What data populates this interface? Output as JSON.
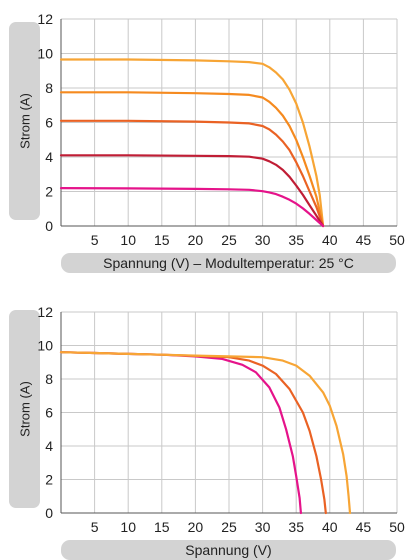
{
  "chart_data": [
    {
      "type": "line",
      "title": "",
      "xlabel": "Spannung (V) – Modultemperatur: 25 °C",
      "ylabel": "Strom (A)",
      "xlim": [
        0,
        50
      ],
      "ylim": [
        0,
        12
      ],
      "x_ticks": [
        5,
        10,
        15,
        20,
        25,
        30,
        35,
        40,
        45,
        50
      ],
      "y_ticks": [
        0,
        2,
        4,
        6,
        8,
        10,
        12
      ],
      "grid": true,
      "series": [
        {
          "color": "#f7a535",
          "points": [
            [
              0,
              9.65
            ],
            [
              10,
              9.65
            ],
            [
              20,
              9.6
            ],
            [
              25,
              9.55
            ],
            [
              28,
              9.5
            ],
            [
              30,
              9.4
            ],
            [
              31,
              9.2
            ],
            [
              32,
              8.9
            ],
            [
              33,
              8.5
            ],
            [
              34,
              7.9
            ],
            [
              35,
              7.1
            ],
            [
              36,
              6.0
            ],
            [
              37,
              4.6
            ],
            [
              38,
              2.9
            ],
            [
              38.5,
              1.8
            ],
            [
              39,
              0
            ]
          ]
        },
        {
          "color": "#f58a1f",
          "points": [
            [
              0,
              7.75
            ],
            [
              10,
              7.75
            ],
            [
              20,
              7.7
            ],
            [
              25,
              7.65
            ],
            [
              28,
              7.6
            ],
            [
              30,
              7.45
            ],
            [
              31,
              7.2
            ],
            [
              32,
              6.85
            ],
            [
              33,
              6.4
            ],
            [
              34,
              5.8
            ],
            [
              35,
              5.0
            ],
            [
              36,
              4.0
            ],
            [
              37,
              2.9
            ],
            [
              38,
              1.7
            ],
            [
              39,
              0
            ]
          ]
        },
        {
          "color": "#ea6224",
          "points": [
            [
              0,
              6.1
            ],
            [
              10,
              6.1
            ],
            [
              20,
              6.05
            ],
            [
              25,
              6.0
            ],
            [
              28,
              5.95
            ],
            [
              30,
              5.8
            ],
            [
              31,
              5.6
            ],
            [
              32,
              5.3
            ],
            [
              33,
              4.9
            ],
            [
              34,
              4.4
            ],
            [
              35,
              3.7
            ],
            [
              36,
              2.9
            ],
            [
              37,
              2.0
            ],
            [
              38,
              1.1
            ],
            [
              39,
              0
            ]
          ]
        },
        {
          "color": "#c01d35",
          "points": [
            [
              0,
              4.1
            ],
            [
              10,
              4.1
            ],
            [
              20,
              4.07
            ],
            [
              25,
              4.05
            ],
            [
              28,
              4.02
            ],
            [
              30,
              3.9
            ],
            [
              31,
              3.75
            ],
            [
              32,
              3.55
            ],
            [
              33,
              3.25
            ],
            [
              34,
              2.85
            ],
            [
              35,
              2.35
            ],
            [
              36,
              1.8
            ],
            [
              37,
              1.2
            ],
            [
              38,
              0.6
            ],
            [
              39,
              0
            ]
          ]
        },
        {
          "color": "#e5138a",
          "points": [
            [
              0,
              2.2
            ],
            [
              10,
              2.18
            ],
            [
              20,
              2.15
            ],
            [
              25,
              2.13
            ],
            [
              28,
              2.1
            ],
            [
              30,
              2.02
            ],
            [
              31,
              1.95
            ],
            [
              32,
              1.85
            ],
            [
              33,
              1.7
            ],
            [
              34,
              1.52
            ],
            [
              35,
              1.3
            ],
            [
              36,
              1.02
            ],
            [
              37,
              0.7
            ],
            [
              38,
              0.35
            ],
            [
              39,
              0
            ]
          ]
        }
      ]
    },
    {
      "type": "line",
      "title": "",
      "xlabel": "Spannung (V)",
      "ylabel": "Strom (A)",
      "xlim": [
        0,
        50
      ],
      "ylim": [
        0,
        12
      ],
      "x_ticks": [
        5,
        10,
        15,
        20,
        25,
        30,
        35,
        40,
        45,
        50
      ],
      "y_ticks": [
        0,
        2,
        4,
        6,
        8,
        10,
        12
      ],
      "grid": true,
      "series": [
        {
          "color": "#e5138a",
          "points": [
            [
              0,
              9.6
            ],
            [
              5,
              9.55
            ],
            [
              10,
              9.5
            ],
            [
              15,
              9.45
            ],
            [
              20,
              9.35
            ],
            [
              24,
              9.2
            ],
            [
              27,
              8.85
            ],
            [
              29,
              8.4
            ],
            [
              31,
              7.5
            ],
            [
              32.5,
              6.3
            ],
            [
              33.5,
              5.0
            ],
            [
              34.5,
              3.4
            ],
            [
              35,
              2.2
            ],
            [
              35.5,
              0.9
            ],
            [
              35.7,
              0
            ]
          ]
        },
        {
          "color": "#ea6224",
          "points": [
            [
              0,
              9.6
            ],
            [
              5,
              9.55
            ],
            [
              10,
              9.5
            ],
            [
              15,
              9.45
            ],
            [
              20,
              9.38
            ],
            [
              25,
              9.3
            ],
            [
              28,
              9.1
            ],
            [
              30,
              8.8
            ],
            [
              32,
              8.3
            ],
            [
              34,
              7.4
            ],
            [
              36,
              6.0
            ],
            [
              37,
              4.9
            ],
            [
              38,
              3.4
            ],
            [
              38.7,
              2.0
            ],
            [
              39.2,
              0.8
            ],
            [
              39.4,
              0
            ]
          ]
        },
        {
          "color": "#f7a535",
          "points": [
            [
              0,
              9.6
            ],
            [
              5,
              9.55
            ],
            [
              10,
              9.5
            ],
            [
              15,
              9.45
            ],
            [
              20,
              9.4
            ],
            [
              25,
              9.35
            ],
            [
              30,
              9.3
            ],
            [
              33,
              9.1
            ],
            [
              35,
              8.8
            ],
            [
              37,
              8.2
            ],
            [
              39,
              7.2
            ],
            [
              40,
              6.4
            ],
            [
              41,
              5.2
            ],
            [
              42,
              3.5
            ],
            [
              42.5,
              2.2
            ],
            [
              42.8,
              1.0
            ],
            [
              43,
              0
            ]
          ]
        }
      ]
    }
  ]
}
